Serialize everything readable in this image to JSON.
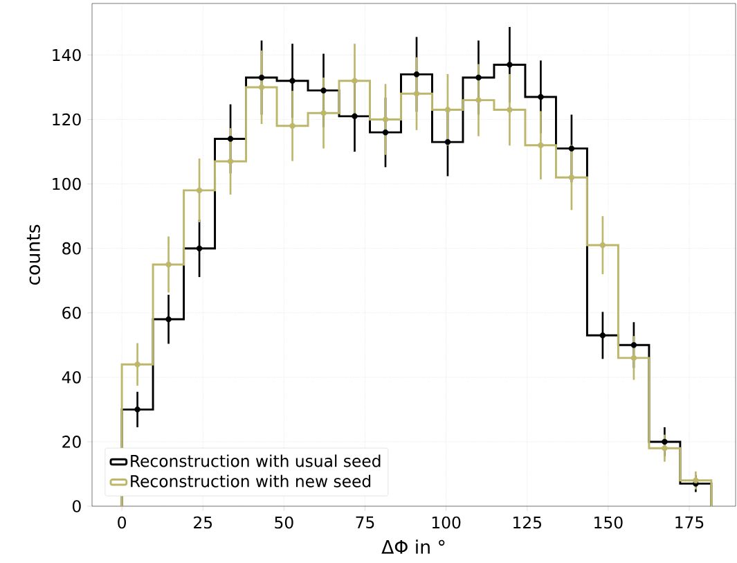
{
  "chart_data": {
    "type": "histogram",
    "xlabel": "ΔΦ in °",
    "ylabel": "counts",
    "bins": [
      0,
      9.6,
      19.1,
      28.7,
      38.3,
      47.8,
      57.4,
      67.0,
      76.5,
      86.1,
      95.7,
      105.2,
      114.8,
      124.4,
      133.9,
      143.5,
      153.1,
      162.6,
      172.2,
      181.8
    ],
    "series": [
      {
        "name": "Reconstruction with usual seed",
        "color": "#000000",
        "values": [
          30,
          58,
          80,
          114,
          133,
          132,
          129,
          121,
          116,
          134,
          113,
          133,
          137,
          127,
          111,
          53,
          50,
          20,
          7
        ]
      },
      {
        "name": "Reconstruction with new seed",
        "color": "#bdb76b",
        "values": [
          44,
          75,
          98,
          107,
          130,
          118,
          122,
          132,
          120,
          128,
          123,
          126,
          123,
          112,
          102,
          81,
          46,
          18,
          8
        ]
      },
      {
        "type": "scatter",
        "color": "#000000",
        "marker": "circle",
        "x": [
          4.8,
          14.4,
          23.9,
          33.5,
          43.1,
          52.6,
          62.2,
          71.8,
          81.3,
          90.9,
          100.5,
          110.0,
          119.6,
          129.2,
          138.7,
          148.3,
          157.9,
          167.4,
          177.0
        ],
        "values": [
          30,
          58,
          80,
          114,
          133,
          132,
          129,
          121,
          116,
          134,
          113,
          133,
          137,
          127,
          111,
          53,
          50,
          20,
          7
        ],
        "errors": [
          5.5,
          7.6,
          8.9,
          10.7,
          11.5,
          11.5,
          11.4,
          11.0,
          10.8,
          11.6,
          10.6,
          11.5,
          11.7,
          11.3,
          10.5,
          7.3,
          7.1,
          4.5,
          2.6
        ]
      },
      {
        "type": "scatter",
        "color": "#bdb76b",
        "marker": "circle",
        "x": [
          4.8,
          14.4,
          23.9,
          33.5,
          43.1,
          52.6,
          62.2,
          71.8,
          81.3,
          90.9,
          100.5,
          110.0,
          119.6,
          129.2,
          138.7,
          148.3,
          157.9,
          167.4,
          177.0
        ],
        "values": [
          44,
          75,
          98,
          107,
          130,
          118,
          122,
          132,
          120,
          128,
          123,
          126,
          123,
          112,
          102,
          81,
          46,
          18,
          8
        ],
        "errors": [
          6.6,
          8.7,
          9.9,
          10.3,
          11.4,
          10.9,
          11.0,
          11.5,
          11.0,
          11.3,
          11.1,
          11.2,
          11.1,
          10.6,
          10.1,
          9.0,
          6.8,
          4.2,
          2.8
        ]
      }
    ],
    "xlim": [
      -9.2,
      189.3
    ],
    "ylim": [
      0,
      156
    ],
    "xticks": [
      0,
      25,
      50,
      75,
      100,
      125,
      150,
      175
    ],
    "yticks": [
      0,
      20,
      40,
      60,
      80,
      100,
      120,
      140
    ],
    "grid": true,
    "legend": "bottom left"
  }
}
